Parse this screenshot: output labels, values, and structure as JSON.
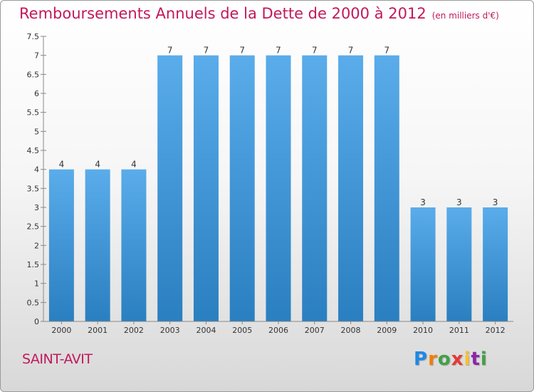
{
  "header": {
    "title": "Remboursements Annuels de la Dette de 2000 à 2012",
    "subtitle": "(en milliers d'€)"
  },
  "footer": {
    "commune": "SAINT-AVIT",
    "logo_text": "Proxiti"
  },
  "colors": {
    "title": "#c2185b",
    "bar_top": "#5aacea",
    "bar_bottom": "#2a7fc0"
  },
  "chart_data": {
    "type": "bar",
    "title": "Remboursements Annuels de la Dette de 2000 à 2012",
    "subtitle": "(en milliers d'€)",
    "xlabel": "",
    "ylabel": "",
    "categories": [
      "2000",
      "2001",
      "2002",
      "2003",
      "2004",
      "2005",
      "2006",
      "2007",
      "2008",
      "2009",
      "2010",
      "2011",
      "2012"
    ],
    "values": [
      4,
      4,
      4,
      7,
      7,
      7,
      7,
      7,
      7,
      7,
      3,
      3,
      3
    ],
    "ylim": [
      0,
      7.5
    ],
    "yticks": [
      "0",
      "0.5",
      "1",
      "1.5",
      "2",
      "2.5",
      "3",
      "3.5",
      "4",
      "4.5",
      "5",
      "5.5",
      "6",
      "6.5",
      "7",
      "7.5"
    ],
    "grid": false,
    "legend": "none"
  }
}
